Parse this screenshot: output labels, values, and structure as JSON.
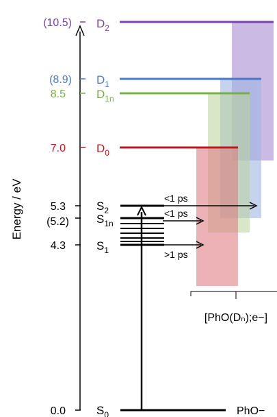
{
  "axis": {
    "label": "Energy / eV"
  },
  "levels": [
    {
      "id": "S0",
      "value": "0.0",
      "base": "S",
      "sub": "0",
      "color": "#000000"
    },
    {
      "id": "S1",
      "value": "4.3",
      "base": "S",
      "sub": "1",
      "color": "#000000"
    },
    {
      "id": "S1n",
      "value": "(5.2)",
      "base": "S",
      "sub": "1n",
      "color": "#000000"
    },
    {
      "id": "S2",
      "value": "5.3",
      "base": "S",
      "sub": "2",
      "color": "#000000"
    },
    {
      "id": "D0",
      "value": "7.0",
      "base": "D",
      "sub": "0",
      "color": "#c0181e"
    },
    {
      "id": "D1n",
      "value": "8.5",
      "base": "D",
      "sub": "1n",
      "color": "#76b043"
    },
    {
      "id": "D1",
      "value": "(8.9)",
      "base": "D",
      "sub": "1",
      "color": "#4a78c8"
    },
    {
      "id": "D2",
      "value": "(10.5)",
      "base": "D",
      "sub": "2",
      "color": "#7b3fb5"
    }
  ],
  "ground_label": "PhO−",
  "timescales": [
    "<1 ps",
    "<1 ps",
    ">1 ps"
  ],
  "bracket_label": "[PhO(Dₙ);e−]",
  "colors": {
    "d0_band": "#e07f84",
    "d1n_band": "#b9d49a",
    "d1_band": "#9eb5e2",
    "d2_band": "#b9a3d9"
  }
}
